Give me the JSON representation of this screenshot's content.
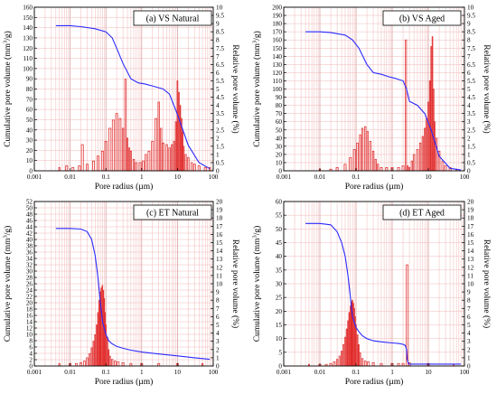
{
  "figure": {
    "x_axis_label": "Pore radius (µm)",
    "y_left_label_main": "Cumulative pore volume (mm",
    "y_left_label_sup": "3",
    "y_left_label_tail": "/g)",
    "y_right_label": "Relative pore volume (%)",
    "x_tick_labels": [
      "0.001",
      "0.01",
      "0.1",
      "1",
      "10",
      "100"
    ],
    "cumulative_color": "#2a2aff",
    "bar_color": "#e02020",
    "grid_color": "#f0b8b8"
  },
  "chart_data": [
    {
      "type": "bar",
      "title": "(a) VS Natural",
      "xscale": "log",
      "xlim": [
        0.001,
        100
      ],
      "ylim_left": [
        0,
        160
      ],
      "ylim_right": [
        0,
        10
      ],
      "left_ticks": [
        0,
        10,
        20,
        30,
        40,
        50,
        60,
        70,
        80,
        90,
        100,
        110,
        120,
        130,
        140,
        150,
        160
      ],
      "right_ticks": [
        0,
        0.5,
        1,
        1.5,
        2,
        2.5,
        3,
        3.5,
        4,
        4.5,
        5,
        5.5,
        6,
        6.5,
        7,
        7.5,
        8,
        8.5,
        9,
        9.5,
        10
      ],
      "right_tick_labels": [
        "0",
        "0.5",
        "1",
        "1.5",
        "2",
        "2.5",
        "3",
        "3.5",
        "4",
        "4.5",
        "5",
        "5.5",
        "6",
        "6.5",
        "7",
        "7.5",
        "8",
        "8.5",
        "9",
        "9.5",
        "10"
      ],
      "cumulative": {
        "x": [
          0.004,
          0.01,
          0.02,
          0.05,
          0.1,
          0.15,
          0.2,
          0.3,
          0.5,
          0.8,
          1.2,
          2,
          4,
          6,
          10,
          20,
          40,
          80
        ],
        "y": [
          142,
          142,
          141,
          139,
          136,
          130,
          120,
          105,
          90,
          86,
          85,
          83,
          80,
          75,
          55,
          25,
          8,
          2
        ]
      },
      "relative": {
        "x": [
          0.005,
          0.008,
          0.012,
          0.018,
          0.022,
          0.03,
          0.045,
          0.06,
          0.08,
          0.1,
          0.13,
          0.16,
          0.2,
          0.25,
          0.3,
          0.35,
          0.4,
          0.45,
          0.5,
          0.6,
          0.7,
          0.9,
          1.1,
          1.3,
          1.6,
          2,
          2.5,
          3,
          3.5,
          4,
          5,
          6,
          7,
          8,
          9,
          10,
          11,
          12,
          13,
          14,
          15,
          17,
          20,
          25,
          30,
          40,
          60,
          80
        ],
        "y": [
          0.2,
          0.3,
          0.2,
          0.3,
          1.6,
          0.4,
          0.6,
          0.9,
          1.2,
          1.8,
          2.6,
          3.1,
          3.5,
          3.2,
          2.6,
          5.6,
          2.0,
          1.4,
          1.2,
          0.7,
          0.5,
          0.5,
          0.6,
          1.0,
          1.2,
          1.8,
          3.2,
          4.2,
          2.6,
          1.7,
          1.6,
          1.4,
          1.6,
          1.8,
          3.0,
          5.5,
          4.8,
          4.0,
          3.2,
          2.4,
          1.5,
          1.0,
          0.8,
          0.5,
          0.4,
          0.3,
          0.2,
          0.2
        ]
      }
    },
    {
      "type": "bar",
      "title": "(b) VS Aged",
      "xscale": "log",
      "xlim": [
        0.001,
        100
      ],
      "ylim_left": [
        0,
        200
      ],
      "ylim_right": [
        0,
        10
      ],
      "left_ticks": [
        0,
        10,
        20,
        30,
        40,
        50,
        60,
        70,
        80,
        90,
        100,
        110,
        120,
        130,
        140,
        150,
        160,
        170,
        180,
        190,
        200
      ],
      "right_ticks": [
        0,
        0.5,
        1,
        1.5,
        2,
        2.5,
        3,
        3.5,
        4,
        4.5,
        5,
        5.5,
        6,
        6.5,
        7,
        7.5,
        8,
        8.5,
        9,
        9.5,
        10
      ],
      "right_tick_labels": [
        "0",
        "0.5",
        "1",
        "1.5",
        "2",
        "2.5",
        "3",
        "3.5",
        "4",
        "4.5",
        "5",
        "5.5",
        "6",
        "6.5",
        "7",
        "7.5",
        "8",
        "8.5",
        "9",
        "9.5",
        "10"
      ],
      "cumulative": {
        "x": [
          0.004,
          0.01,
          0.02,
          0.05,
          0.08,
          0.12,
          0.2,
          0.3,
          0.5,
          0.8,
          1.2,
          2,
          2.5,
          3,
          5,
          8,
          12,
          20,
          40,
          80
        ],
        "y": [
          170,
          170,
          169,
          166,
          160,
          150,
          130,
          120,
          118,
          115,
          113,
          110,
          100,
          85,
          80,
          70,
          50,
          18,
          3,
          1
        ]
      },
      "relative": {
        "x": [
          0.01,
          0.02,
          0.03,
          0.05,
          0.07,
          0.09,
          0.11,
          0.13,
          0.15,
          0.18,
          0.21,
          0.25,
          0.3,
          0.35,
          0.4,
          0.5,
          0.7,
          1.0,
          1.5,
          2.0,
          2.4,
          2.7,
          3.0,
          3.5,
          4.0,
          5,
          6,
          7,
          8,
          9,
          10,
          11,
          12,
          13,
          14,
          15,
          17,
          20,
          25,
          30,
          40,
          60
        ],
        "y": [
          0.1,
          0.1,
          0.2,
          0.4,
          0.8,
          1.3,
          1.7,
          2.2,
          2.6,
          2.7,
          2.4,
          1.8,
          1.2,
          0.7,
          0.4,
          0.2,
          0.2,
          0.2,
          0.2,
          0.3,
          8.0,
          0.3,
          0.2,
          0.6,
          1.0,
          1.3,
          1.7,
          2.1,
          2.6,
          3.2,
          4.2,
          5.5,
          7.6,
          8.2,
          5.0,
          3.0,
          2.0,
          1.2,
          0.6,
          0.3,
          0.2,
          0.1
        ]
      }
    },
    {
      "type": "bar",
      "title": "(c) ET Natural",
      "xscale": "log",
      "xlim": [
        0.001,
        100
      ],
      "ylim_left": [
        0,
        52
      ],
      "ylim_right": [
        0,
        20
      ],
      "left_ticks": [
        0,
        2,
        4,
        6,
        8,
        10,
        12,
        14,
        16,
        18,
        20,
        22,
        24,
        26,
        28,
        30,
        32,
        34,
        36,
        38,
        40,
        42,
        44,
        46,
        48,
        50,
        52
      ],
      "right_ticks": [
        0,
        1,
        2,
        3,
        4,
        5,
        6,
        7,
        8,
        9,
        10,
        11,
        12,
        13,
        14,
        15,
        16,
        17,
        18,
        19,
        20
      ],
      "right_tick_labels": [
        "0",
        "1",
        "2",
        "3",
        "4",
        "5",
        "6",
        "7",
        "8",
        "9",
        "10",
        "11",
        "12",
        "13",
        "14",
        "15",
        "16",
        "17",
        "18",
        "19",
        "20"
      ],
      "cumulative": {
        "x": [
          0.004,
          0.01,
          0.02,
          0.03,
          0.04,
          0.05,
          0.06,
          0.07,
          0.08,
          0.1,
          0.12,
          0.15,
          0.2,
          0.3,
          0.5,
          1,
          3,
          10,
          30,
          80
        ],
        "y": [
          43.5,
          43.5,
          43.3,
          42.5,
          40,
          35,
          28,
          20,
          14,
          10,
          8,
          7,
          6.2,
          5.6,
          5.0,
          4.4,
          3.8,
          3.2,
          2.6,
          2.1
        ]
      },
      "relative": {
        "x": [
          0.005,
          0.01,
          0.015,
          0.02,
          0.025,
          0.03,
          0.035,
          0.04,
          0.045,
          0.05,
          0.055,
          0.06,
          0.065,
          0.07,
          0.075,
          0.08,
          0.085,
          0.09,
          0.095,
          0.1,
          0.11,
          0.12,
          0.13,
          0.15,
          0.18,
          0.22,
          0.3,
          0.5,
          1,
          3,
          10,
          50
        ],
        "y": [
          0.3,
          0.3,
          0.3,
          0.4,
          0.6,
          1.0,
          1.5,
          2.2,
          3.0,
          3.8,
          5.0,
          6.5,
          8.0,
          9.0,
          9.5,
          9.8,
          9.2,
          8.2,
          6.5,
          5.0,
          3.5,
          2.0,
          1.2,
          0.8,
          0.6,
          0.5,
          0.4,
          0.3,
          0.3,
          0.3,
          0.3,
          0.3
        ]
      }
    },
    {
      "type": "bar",
      "title": "(d) ET Aged",
      "xscale": "log",
      "xlim": [
        0.001,
        100
      ],
      "ylim_left": [
        0,
        60
      ],
      "ylim_right": [
        0,
        20
      ],
      "left_ticks": [
        0,
        5,
        10,
        15,
        20,
        25,
        30,
        35,
        40,
        45,
        50,
        55,
        60
      ],
      "right_ticks": [
        0,
        1,
        2,
        3,
        4,
        5,
        6,
        7,
        8,
        9,
        10,
        11,
        12,
        13,
        14,
        15,
        16,
        17,
        18,
        19,
        20
      ],
      "right_tick_labels": [
        "0",
        "1",
        "2",
        "3",
        "4",
        "5",
        "6",
        "7",
        "8",
        "9",
        "10",
        "11",
        "12",
        "13",
        "14",
        "15",
        "16",
        "17",
        "18",
        "19",
        "20"
      ],
      "cumulative": {
        "x": [
          0.004,
          0.01,
          0.02,
          0.03,
          0.04,
          0.05,
          0.06,
          0.07,
          0.08,
          0.1,
          0.12,
          0.15,
          0.2,
          0.3,
          0.5,
          1,
          1.5,
          2,
          2.3,
          2.5,
          2.6,
          2.8,
          3,
          10,
          80
        ],
        "y": [
          52,
          52,
          51.5,
          49,
          45,
          40,
          33,
          25,
          18,
          14,
          12.5,
          11,
          10,
          9.2,
          8.8,
          8.4,
          8.2,
          7.9,
          7.5,
          6.0,
          2.5,
          1.0,
          0.7,
          0.7,
          0.7
        ]
      },
      "relative": {
        "x": [
          0.005,
          0.01,
          0.015,
          0.02,
          0.025,
          0.03,
          0.035,
          0.04,
          0.045,
          0.05,
          0.055,
          0.06,
          0.065,
          0.07,
          0.075,
          0.08,
          0.085,
          0.09,
          0.095,
          0.1,
          0.11,
          0.12,
          0.13,
          0.15,
          0.18,
          0.22,
          0.3,
          0.5,
          1,
          1.5,
          2,
          2.6,
          3,
          10,
          50
        ],
        "y": [
          0.2,
          0.2,
          0.2,
          0.3,
          0.5,
          0.8,
          1.2,
          1.8,
          2.6,
          3.5,
          4.5,
          5.5,
          6.5,
          7.3,
          7.8,
          8.0,
          7.6,
          7.0,
          6.0,
          5.0,
          3.8,
          2.6,
          1.6,
          0.9,
          0.6,
          0.5,
          0.4,
          0.3,
          0.3,
          0.3,
          0.3,
          12.3,
          0.4,
          0.3,
          0.2
        ]
      }
    }
  ]
}
